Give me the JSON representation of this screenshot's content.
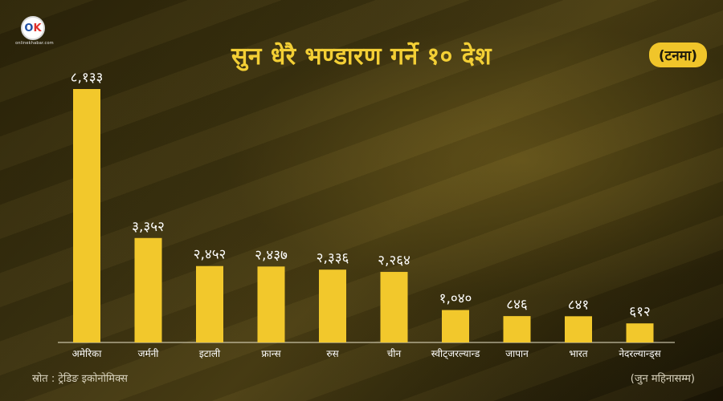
{
  "header": {
    "title": "सुन धेरै भण्डारण गर्ने १० देश",
    "unit": "(टनमा)"
  },
  "logo": {
    "mark_left": "O",
    "mark_right": "K",
    "brand": "onlinekhabar.com"
  },
  "footer": {
    "source": "स्रोत : ट्रेडिङ इकोनोमिक्स",
    "note": "(जुन महिनासम्म)"
  },
  "colors": {
    "bar": "#f2c82c",
    "label": "#ffffff",
    "axis": "#e8e2c8"
  },
  "chart_data": {
    "type": "bar",
    "title": "सुन धेरै भण्डारण गर्ने १० देश",
    "xlabel": "",
    "ylabel": "",
    "categories": [
      "अमेरिका",
      "जर्मनी",
      "इटाली",
      "फ्रान्स",
      "रुस",
      "चीन",
      "स्वीट्जरल्यान्ड",
      "जापान",
      "भारत",
      "नेदरल्यान्ड्स"
    ],
    "values": [
      8133,
      3352,
      2452,
      2437,
      2336,
      2264,
      1040,
      846,
      841,
      612
    ],
    "value_labels": [
      "८,१३३",
      "३,३५२",
      "२,४५२",
      "२,४३७",
      "२,३३६",
      "२,२६४",
      "१,०४०",
      "८४६",
      "८४१",
      "६१२"
    ],
    "ylim": [
      0,
      8133
    ],
    "grid": false,
    "legend": "none"
  }
}
